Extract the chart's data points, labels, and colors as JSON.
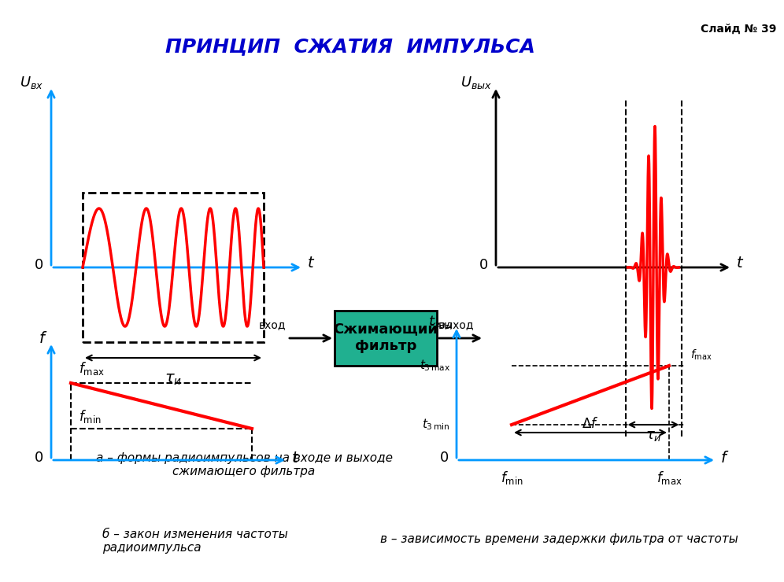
{
  "title": "ПРИНЦИП  СЖАТИЯ  ИМПУЛЬСА",
  "slide_label": "Слайд № 39",
  "bg_color": "#ffffff",
  "title_color": "#0000cc",
  "axis_color": "#0099ff",
  "signal_color": "#ff0000",
  "black": "#000000",
  "green_box_color": "#00aa88",
  "green_box_text": "Сжимающий\nфильтр",
  "caption_a": "а – формы радиоимпульсов на входе и выходе\nсжимающего фильтра",
  "caption_b": "б – закон изменения частоты\nрадиоимпульса",
  "caption_v": "в – зависимость времени задержки фильтра от частоты"
}
